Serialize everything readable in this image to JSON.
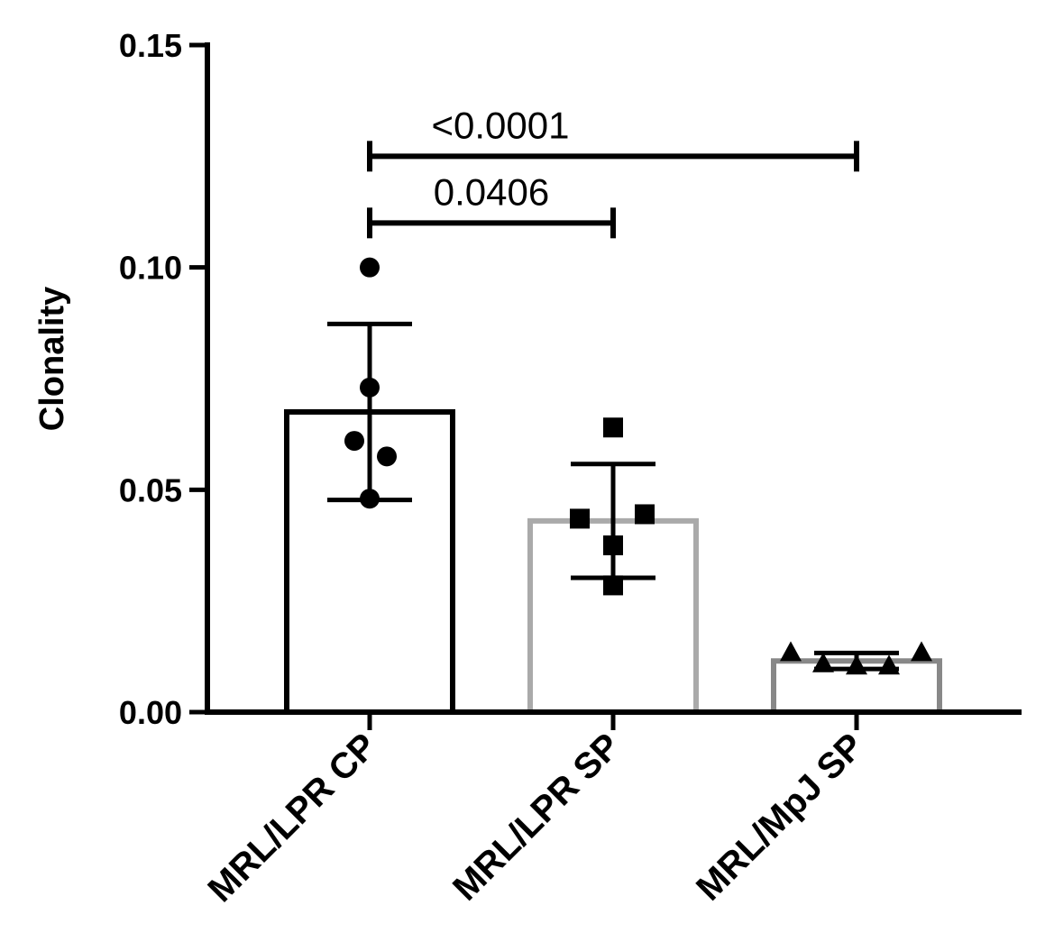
{
  "chart_data": {
    "type": "bar",
    "title": "",
    "xlabel": "",
    "ylabel": "Clonality",
    "ylim": [
      0,
      0.15
    ],
    "yticks": [
      "0.00",
      "0.05",
      "0.10",
      "0.15"
    ],
    "ytick_values": [
      0,
      0.05,
      0.1,
      0.15
    ],
    "grid": false,
    "legend": "none",
    "categories": [
      "MRL/LPR CP",
      "MRL/LPR SP",
      "MRL/MpJ SP"
    ],
    "values": [
      0.0675,
      0.043,
      0.0115
    ],
    "error_sd": [
      0.0198,
      0.0128,
      0.0018
    ],
    "bar_colors": [
      "#000000",
      "#aaaaaa",
      "#888888"
    ],
    "marker_shapes": [
      "circle",
      "square",
      "triangle"
    ],
    "points": [
      [
        0.1,
        0.073,
        0.061,
        0.0575,
        0.048
      ],
      [
        0.064,
        0.0435,
        0.0445,
        0.0375,
        0.0285
      ],
      [
        0.0135,
        0.011,
        0.0105,
        0.0105,
        0.0135
      ]
    ],
    "significance": [
      {
        "from": 0,
        "to": 1,
        "label": "0.0406",
        "y": 0.11
      },
      {
        "from": 0,
        "to": 2,
        "label": "<0.0001",
        "y": 0.125
      }
    ]
  }
}
